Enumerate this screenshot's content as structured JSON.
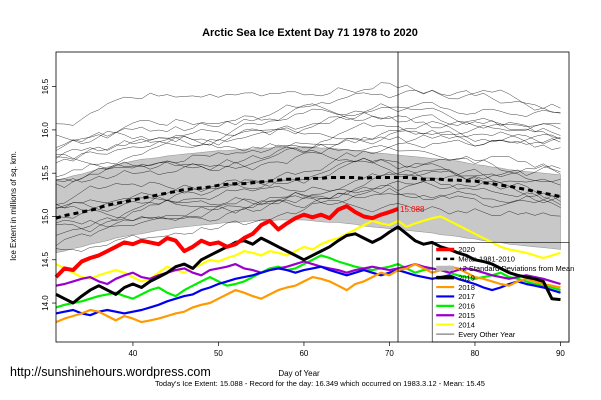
{
  "chart_data": {
    "type": "line",
    "title": "Arctic Sea Ice Extent Day 71 1978 to 2020",
    "xlabel": "Day of Year",
    "ylabel": "Ice Extent in millions of sq. km.",
    "xlim": [
      31,
      91
    ],
    "ylim": [
      13.55,
      16.9
    ],
    "xticks": [
      40,
      50,
      60,
      70,
      80,
      90
    ],
    "yticks": [
      14.0,
      14.5,
      15.0,
      15.5,
      16.0,
      16.5
    ],
    "ytick_labels": [
      "14.0",
      "14.5",
      "15.0",
      "15.5",
      "16.0",
      "16.5"
    ],
    "current_day": 71,
    "current_value_label": "15.088",
    "band_upper": [
      15.42,
      15.44,
      15.47,
      15.49,
      15.52,
      15.55,
      15.57,
      15.59,
      15.62,
      15.64,
      15.66,
      15.67,
      15.68,
      15.7,
      15.71,
      15.72,
      15.73,
      15.74,
      15.75,
      15.76,
      15.76,
      15.77,
      15.78,
      15.78,
      15.79,
      15.79,
      15.8,
      15.8,
      15.8,
      15.81,
      15.8,
      15.79,
      15.79,
      15.78,
      15.77,
      15.76,
      15.75,
      15.74,
      15.73,
      15.72,
      15.71,
      15.7,
      15.69,
      15.68,
      15.67,
      15.66,
      15.65,
      15.64,
      15.62,
      15.6,
      15.59,
      15.57,
      15.56,
      15.54,
      15.53,
      15.52,
      15.51,
      15.5,
      15.49,
      15.48
    ],
    "band_lower": [
      14.58,
      14.6,
      14.63,
      14.65,
      14.68,
      14.7,
      14.72,
      14.75,
      14.77,
      14.79,
      14.8,
      14.82,
      14.84,
      14.85,
      14.87,
      14.88,
      14.89,
      14.9,
      14.91,
      14.92,
      14.93,
      14.93,
      14.94,
      14.95,
      14.95,
      14.95,
      14.96,
      14.96,
      14.96,
      14.96,
      14.95,
      14.94,
      14.93,
      14.93,
      14.92,
      14.91,
      14.89,
      14.88,
      14.87,
      14.86,
      14.85,
      14.84,
      14.83,
      14.82,
      14.81,
      14.79,
      14.78,
      14.77,
      14.75,
      14.74,
      14.72,
      14.71,
      14.7,
      14.68,
      14.67,
      14.66,
      14.65,
      14.64,
      14.63,
      14.62
    ],
    "series": [
      {
        "name": "Mean 1981-2010",
        "color": "#000000",
        "style": "dashed",
        "x_start": 31,
        "values": [
          14.98,
          15.01,
          15.03,
          15.05,
          15.07,
          15.1,
          15.13,
          15.15,
          15.17,
          15.19,
          15.21,
          15.23,
          15.25,
          15.27,
          15.29,
          15.31,
          15.32,
          15.33,
          15.34,
          15.36,
          15.37,
          15.38,
          15.38,
          15.39,
          15.4,
          15.41,
          15.42,
          15.43,
          15.43,
          15.44,
          15.44,
          15.44,
          15.45,
          15.45,
          15.45,
          15.45,
          15.44,
          15.45,
          15.45,
          15.45,
          15.45,
          15.45,
          15.44,
          15.43,
          15.43,
          15.43,
          15.42,
          15.42,
          15.41,
          15.41,
          15.39,
          15.38,
          15.36,
          15.35,
          15.33,
          15.31,
          15.29,
          15.27,
          15.25,
          15.23
        ]
      },
      {
        "name": "2020",
        "color": "#ff0000",
        "style": "bold",
        "x_start": 31,
        "values": [
          14.3,
          14.4,
          14.38,
          14.48,
          14.52,
          14.55,
          14.6,
          14.65,
          14.7,
          14.68,
          14.72,
          14.7,
          14.68,
          14.75,
          14.72,
          14.6,
          14.65,
          14.72,
          14.68,
          14.7,
          14.65,
          14.68,
          14.75,
          14.8,
          14.9,
          14.95,
          14.85,
          14.92,
          14.98,
          15.02,
          14.99,
          15.02,
          14.98,
          15.08,
          15.12,
          15.05,
          15.0,
          14.98,
          15.02,
          15.05,
          15.088
        ]
      },
      {
        "name": "2019",
        "color": "#000000",
        "style": "bold",
        "x_start": 31,
        "values": [
          14.1,
          14.05,
          14.0,
          14.08,
          14.15,
          14.2,
          14.15,
          14.1,
          14.18,
          14.22,
          14.18,
          14.25,
          14.3,
          14.35,
          14.42,
          14.45,
          14.4,
          14.5,
          14.55,
          14.6,
          14.65,
          14.7,
          14.72,
          14.68,
          14.75,
          14.7,
          14.65,
          14.6,
          14.55,
          14.5,
          14.55,
          14.6,
          14.65,
          14.72,
          14.78,
          14.8,
          14.75,
          14.7,
          14.75,
          14.82,
          14.88,
          14.8,
          14.72,
          14.68,
          14.7,
          14.65,
          14.62,
          14.58,
          14.55,
          14.5,
          14.48,
          14.45,
          14.4,
          14.35,
          14.32,
          14.3,
          14.28,
          14.25,
          14.05,
          14.04
        ]
      },
      {
        "name": "2018",
        "color": "#ff9900",
        "style": "normal",
        "x_start": 31,
        "values": [
          13.78,
          13.82,
          13.85,
          13.88,
          13.92,
          13.9,
          13.85,
          13.8,
          13.85,
          13.82,
          13.78,
          13.8,
          13.82,
          13.85,
          13.88,
          13.9,
          13.95,
          13.98,
          14.0,
          14.05,
          14.1,
          14.15,
          14.12,
          14.08,
          14.05,
          14.1,
          14.15,
          14.18,
          14.2,
          14.25,
          14.3,
          14.28,
          14.25,
          14.2,
          14.15,
          14.22,
          14.25,
          14.3,
          14.35,
          14.32,
          14.38,
          14.4,
          14.45,
          14.4,
          14.35,
          14.38,
          14.42,
          14.4,
          14.35,
          14.3,
          14.28,
          14.25,
          14.22,
          14.2,
          14.25,
          14.28,
          14.25,
          14.22,
          14.2,
          14.18
        ]
      },
      {
        "name": "2017",
        "color": "#0000ee",
        "style": "normal",
        "x_start": 31,
        "values": [
          13.88,
          13.9,
          13.92,
          13.88,
          13.86,
          13.9,
          13.92,
          13.9,
          13.88,
          13.9,
          13.92,
          13.95,
          13.98,
          14.02,
          14.05,
          14.08,
          14.1,
          14.15,
          14.18,
          14.22,
          14.25,
          14.28,
          14.3,
          14.32,
          14.35,
          14.38,
          14.4,
          14.38,
          14.35,
          14.38,
          14.4,
          14.42,
          14.38,
          14.35,
          14.32,
          14.35,
          14.38,
          14.35,
          14.32,
          14.35,
          14.38,
          14.35,
          14.32,
          14.3,
          14.28,
          14.3,
          14.32,
          14.28,
          14.25,
          14.22,
          14.18,
          14.15,
          14.18,
          14.22,
          14.25,
          14.22,
          14.2,
          14.18,
          14.15,
          14.12
        ]
      },
      {
        "name": "2016",
        "color": "#00ee00",
        "style": "normal",
        "x_start": 31,
        "values": [
          13.95,
          13.98,
          14.0,
          14.02,
          14.05,
          14.08,
          14.1,
          14.12,
          14.08,
          14.05,
          14.1,
          14.15,
          14.18,
          14.12,
          14.08,
          14.15,
          14.2,
          14.25,
          14.3,
          14.25,
          14.2,
          14.22,
          14.25,
          14.3,
          14.35,
          14.4,
          14.42,
          14.38,
          14.4,
          14.45,
          14.5,
          14.55,
          14.52,
          14.48,
          14.45,
          14.42,
          14.4,
          14.38,
          14.4,
          14.42,
          14.45,
          14.4,
          14.35,
          14.38,
          14.4,
          14.38,
          14.35,
          14.32,
          14.3,
          14.28,
          14.3,
          14.32,
          14.35,
          14.3,
          14.28,
          14.25,
          14.22,
          14.2,
          14.18,
          14.15
        ]
      },
      {
        "name": "2015",
        "color": "#9900cc",
        "style": "normal",
        "x_start": 31,
        "values": [
          14.2,
          14.22,
          14.25,
          14.28,
          14.3,
          14.25,
          14.22,
          14.28,
          14.32,
          14.35,
          14.3,
          14.28,
          14.32,
          14.35,
          14.38,
          14.4,
          14.35,
          14.32,
          14.38,
          14.4,
          14.42,
          14.45,
          14.4,
          14.38,
          14.35,
          14.38,
          14.4,
          14.42,
          14.45,
          14.48,
          14.45,
          14.42,
          14.4,
          14.38,
          14.35,
          14.38,
          14.4,
          14.42,
          14.4,
          14.38,
          14.4,
          14.42,
          14.45,
          14.42,
          14.4,
          14.38,
          14.35,
          14.38,
          14.4,
          14.38,
          14.35,
          14.32,
          14.3,
          14.28,
          14.3,
          14.32,
          14.3,
          14.28,
          14.25,
          14.22
        ]
      },
      {
        "name": "2014",
        "color": "#ffff00",
        "style": "normal",
        "x_start": 31,
        "values": [
          14.45,
          14.4,
          14.35,
          14.3,
          14.28,
          14.32,
          14.35,
          14.38,
          14.35,
          14.3,
          14.25,
          14.28,
          14.35,
          14.42,
          14.38,
          14.35,
          14.4,
          14.45,
          14.5,
          14.48,
          14.52,
          14.55,
          14.6,
          14.58,
          14.55,
          14.6,
          14.58,
          14.55,
          14.6,
          14.65,
          14.62,
          14.68,
          14.72,
          14.75,
          14.8,
          14.85,
          14.9,
          14.95,
          14.92,
          14.9,
          14.95,
          14.88,
          14.92,
          14.95,
          14.98,
          15.0,
          14.95,
          14.9,
          14.85,
          14.8,
          14.75,
          14.7,
          14.65,
          14.62,
          14.6,
          14.58,
          14.55,
          14.52,
          14.55,
          14.58
        ]
      }
    ],
    "legend": [
      {
        "label": "2020",
        "color": "#ff0000",
        "style": "bold"
      },
      {
        "label": "Mean 1981-2010",
        "color": "#000000",
        "style": "dashed"
      },
      {
        "label": "+2 Standard Deviations from Mean",
        "color": "#bbbbbb",
        "style": "thick"
      },
      {
        "label": "2019",
        "color": "#000000",
        "style": "bold"
      },
      {
        "label": "2018",
        "color": "#ff9900",
        "style": "normal"
      },
      {
        "label": "2017",
        "color": "#0000ee",
        "style": "normal"
      },
      {
        "label": "2016",
        "color": "#00ee00",
        "style": "normal"
      },
      {
        "label": "2015",
        "color": "#9900cc",
        "style": "normal"
      },
      {
        "label": "2014",
        "color": "#ffff00",
        "style": "normal"
      },
      {
        "label": "Every Other Year",
        "color": "#000000",
        "style": "thin"
      }
    ],
    "footer": "Today's Ice Extent: 15.088  - Record for the day: 16.349 which occurred on 1983.3.12  - Mean: 15.45",
    "watermark": "http://sunshinehours.wordpress.com"
  }
}
